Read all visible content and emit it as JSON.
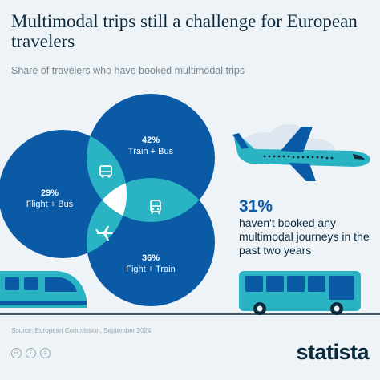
{
  "title": "Multimodal trips still a challenge for European travelers",
  "subtitle": "Share of travelers who have booked multimodal trips",
  "chart_data": {
    "type": "venn",
    "title": "Multimodal trips still a challenge for European travelers",
    "subtitle": "Share of travelers who have booked multimodal trips",
    "sets": [
      {
        "name": "Train + Bus",
        "value_label": "42%",
        "value": 42
      },
      {
        "name": "Flight + Bus",
        "value_label": "29%",
        "value": 29
      },
      {
        "name": "Fight + Train",
        "value_label": "36%",
        "value": 36
      }
    ],
    "overlap_icons": [
      "bus-icon",
      "train-icon",
      "plane-icon"
    ],
    "none": {
      "value": 31,
      "value_label": "31%"
    }
  },
  "callout": {
    "pct": "31%",
    "text": "haven't booked any multimodal journeys in the past two years"
  },
  "source": "Source: European Commission, September 2024",
  "brand": "statista",
  "colors": {
    "circle": "#0a5aa6",
    "overlap": "#2ab3c3",
    "center": "#ffffff",
    "text_dark": "#0b2a3d",
    "background": "#eef3f7"
  }
}
